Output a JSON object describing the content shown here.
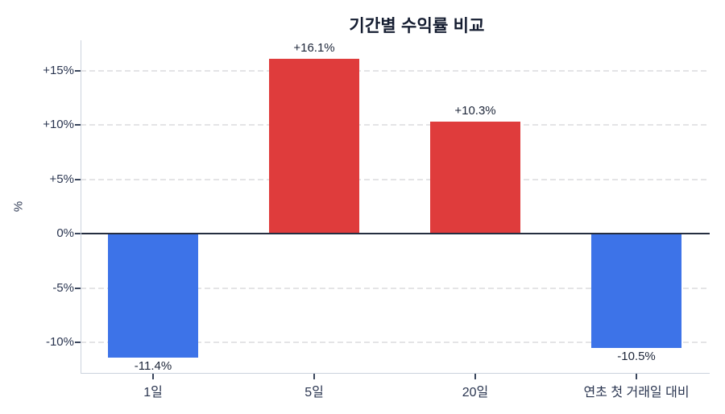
{
  "chart_data": {
    "type": "bar",
    "title": "기간별 수익률 비교",
    "xlabel": "",
    "ylabel": "%",
    "categories": [
      "1일",
      "5일",
      "20일",
      "연초 첫 거래일 대비"
    ],
    "values": [
      -11.4,
      16.1,
      10.3,
      -10.5
    ],
    "value_labels": [
      "-11.4%",
      "+16.1%",
      "+10.3%",
      "-10.5%"
    ],
    "yticks": [
      {
        "value": 15,
        "label": "+15%"
      },
      {
        "value": 10,
        "label": "+10%"
      },
      {
        "value": 5,
        "label": "+5%"
      },
      {
        "value": 0,
        "label": "0%"
      },
      {
        "value": -5,
        "label": "-5%"
      },
      {
        "value": -10,
        "label": "-10%"
      }
    ],
    "ylim": [
      -12.8,
      17.8
    ],
    "grid": "horizontal-dashed",
    "legend": "none",
    "colors": {
      "positive_bar": "#df3c3c",
      "negative_bar": "#3d73e8",
      "title_text": "#151d31",
      "tick_text": "#2a3550",
      "value_label_text": "#1d2639",
      "gridline": "#e4e4e6",
      "spine": "#ccd3dd",
      "zero_line": "#252e40",
      "tick_mark": "#3a465c",
      "background": "#ffffff"
    }
  }
}
